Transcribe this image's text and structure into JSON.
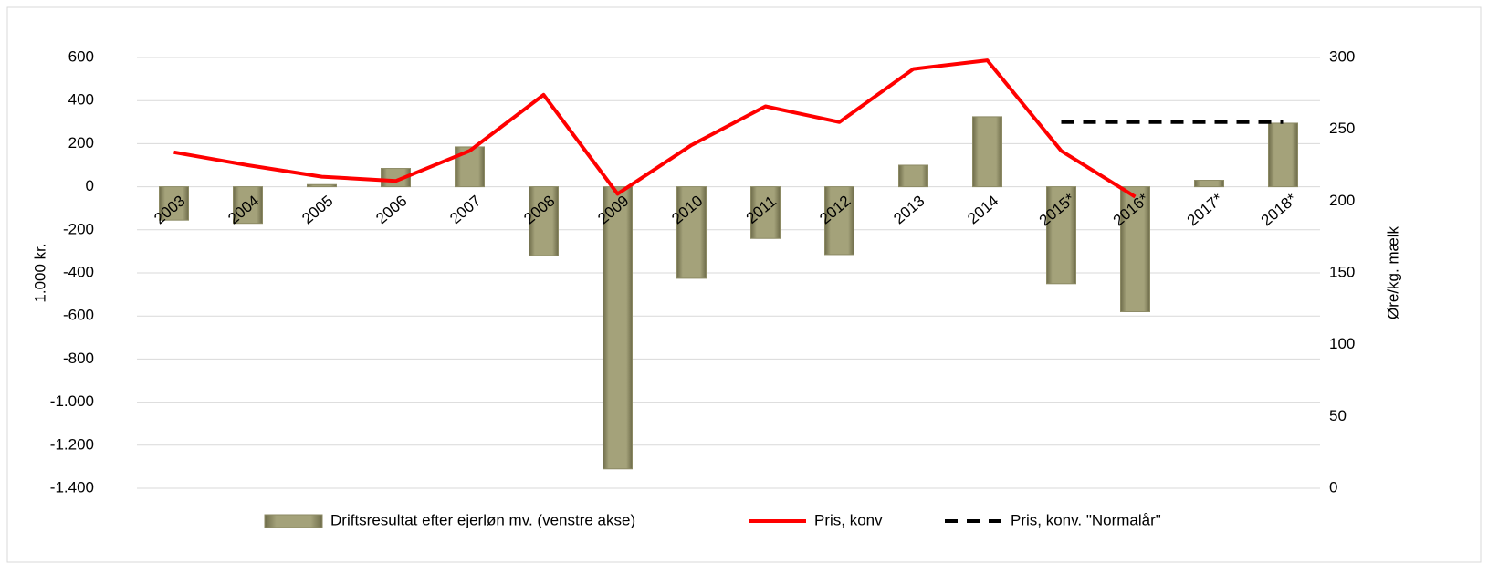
{
  "chart_data": {
    "type": "combo",
    "categories": [
      "2003",
      "2004",
      "2005",
      "2006",
      "2007",
      "2008",
      "2009",
      "2010",
      "2011",
      "2012",
      "2013",
      "2014",
      "2015*",
      "2016*",
      "2017*",
      "2018*"
    ],
    "series": [
      {
        "name": "Driftsresultat efter ejerløn mv. (venstre akse)",
        "type": "bar",
        "color": "#8c8a64",
        "values": [
          -155,
          -170,
          10,
          85,
          185,
          -320,
          -1310,
          -425,
          -240,
          -315,
          100,
          325,
          -450,
          -580,
          30,
          295
        ]
      },
      {
        "name": "Pris, konv",
        "type": "line",
        "axis": "y2",
        "color": "#ff0000",
        "values": [
          234,
          225,
          217,
          214,
          235,
          274,
          205,
          239,
          266,
          255,
          292,
          298,
          235,
          203,
          null,
          null
        ]
      },
      {
        "name": "Pris, konv. \"Normalår\"",
        "type": "line",
        "axis": "y2",
        "color": "#000000",
        "dashed": true,
        "values": [
          null,
          null,
          null,
          null,
          null,
          null,
          null,
          null,
          null,
          null,
          null,
          null,
          255,
          255,
          255,
          255
        ]
      }
    ],
    "ylabel": "1.000 kr.",
    "y2label": "Øre/kg. mælk",
    "ylim": [
      -1400,
      600
    ],
    "yticks": [
      600,
      400,
      200,
      0,
      -200,
      -400,
      -600,
      -800,
      {
        "value": -1000,
        "label": "-1.000"
      },
      {
        "value": -1200,
        "label": "-1.200"
      },
      {
        "value": -1400,
        "label": "-1.400"
      }
    ],
    "y2lim": [
      0,
      300
    ],
    "y2ticks": [
      300,
      250,
      200,
      150,
      100,
      50,
      0
    ],
    "grid": true,
    "legend": "bottom"
  }
}
